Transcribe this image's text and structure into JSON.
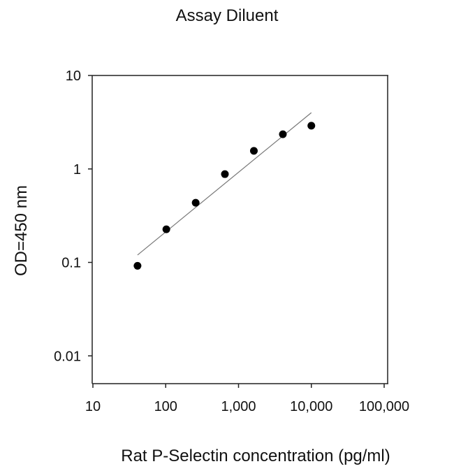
{
  "chart_data": {
    "type": "scatter",
    "title": "Assay Diluent",
    "xlabel": "Rat P-Selectin concentration (pg/ml)",
    "ylabel": "OD=450 nm",
    "xscale": "log",
    "yscale": "log",
    "xlim": [
      10,
      100000
    ],
    "ylim": [
      0.005,
      10
    ],
    "xticks": [
      10,
      100,
      1000,
      10000,
      100000
    ],
    "xtick_labels": [
      "10",
      "100",
      "1,000",
      "10,000",
      "100,000"
    ],
    "yticks": [
      0.01,
      0.1,
      1,
      10
    ],
    "ytick_labels": [
      "0.01",
      "0.1",
      "1",
      "10"
    ],
    "grid": false,
    "legend": null,
    "series": [
      {
        "name": "Assay Diluent",
        "marker": "filled-circle",
        "color": "#000000",
        "x": [
          41,
          102,
          258,
          650,
          1625,
          4063,
          10000
        ],
        "y": [
          0.092,
          0.226,
          0.435,
          0.88,
          1.56,
          2.35,
          2.9
        ]
      },
      {
        "name": "fit-line",
        "type": "line",
        "color": "#777777",
        "x": [
          41,
          10000
        ],
        "y": [
          0.12,
          4.0
        ]
      }
    ]
  }
}
